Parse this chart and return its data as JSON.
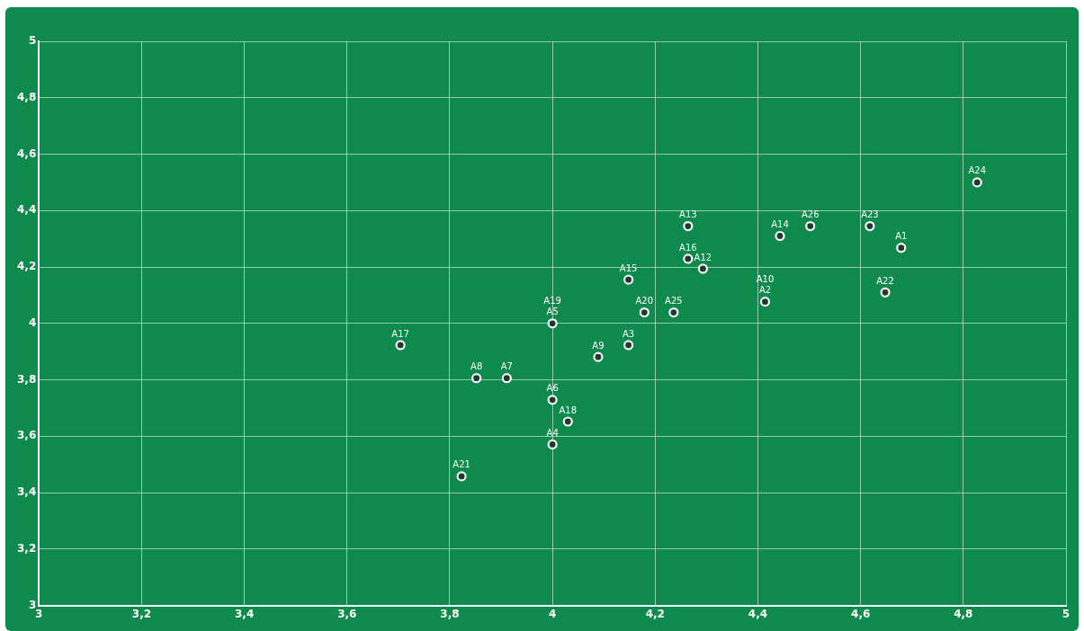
{
  "chart_data": {
    "type": "scatter",
    "marker": "circle",
    "grid": true,
    "series": [
      {
        "color": "#ffffff",
        "x": [
          4.679,
          4.414,
          4.148,
          4.0,
          4.0,
          4.0,
          3.911,
          3.852,
          4.089,
          4.293,
          4.264,
          4.443,
          4.148,
          4.264,
          3.704,
          4.03,
          4.179,
          3.823,
          4.648,
          4.618,
          4.827,
          4.236,
          4.502
        ],
        "values": [
          4.268,
          4.077,
          3.923,
          3.571,
          4.0,
          3.729,
          3.806,
          3.806,
          3.881,
          4.194,
          4.345,
          4.31,
          4.155,
          4.229,
          3.923,
          3.652,
          4.039,
          3.458,
          4.11,
          4.345,
          4.5,
          4.039,
          4.345
        ]
      }
    ],
    "annotations": [
      {
        "text": "A1",
        "x": 4.679,
        "y": 4.268
      },
      {
        "text": "A2",
        "x": 4.414,
        "y": 4.077
      },
      {
        "text": "A3",
        "x": 4.148,
        "y": 3.923
      },
      {
        "text": "A4",
        "x": 4.0,
        "y": 3.571
      },
      {
        "text": "A5",
        "x": 4.0,
        "y": 4.0
      },
      {
        "text": "A6",
        "x": 4.0,
        "y": 3.729
      },
      {
        "text": "A7",
        "x": 3.911,
        "y": 3.806
      },
      {
        "text": "A8",
        "x": 3.852,
        "y": 3.806
      },
      {
        "text": "A9",
        "x": 4.089,
        "y": 3.881
      },
      {
        "text": "A10",
        "x": 4.414,
        "y": 4.077
      },
      {
        "text": "A12",
        "x": 4.293,
        "y": 4.194
      },
      {
        "text": "A13",
        "x": 4.264,
        "y": 4.345
      },
      {
        "text": "A14",
        "x": 4.443,
        "y": 4.31
      },
      {
        "text": "A15",
        "x": 4.148,
        "y": 4.155
      },
      {
        "text": "A16",
        "x": 4.264,
        "y": 4.229
      },
      {
        "text": "A17",
        "x": 3.704,
        "y": 3.923
      },
      {
        "text": "A18",
        "x": 4.03,
        "y": 3.652
      },
      {
        "text": "A19",
        "x": 4.0,
        "y": 4.0
      },
      {
        "text": "A20",
        "x": 4.179,
        "y": 4.039
      },
      {
        "text": "A21",
        "x": 3.823,
        "y": 3.458
      },
      {
        "text": "A22",
        "x": 4.648,
        "y": 4.11
      },
      {
        "text": "A23",
        "x": 4.618,
        "y": 4.345
      },
      {
        "text": "A24",
        "x": 4.827,
        "y": 4.5
      },
      {
        "text": "A25",
        "x": 4.236,
        "y": 4.039
      },
      {
        "text": "A26",
        "x": 4.502,
        "y": 4.345
      }
    ],
    "xlim": [
      3,
      5
    ],
    "xticks": [
      {
        "value": 3,
        "label": "3"
      },
      {
        "value": 3.2,
        "label": "3,2"
      },
      {
        "value": 3.4,
        "label": "3,4"
      },
      {
        "value": 3.6,
        "label": "3,6"
      },
      {
        "value": 3.8,
        "label": "3,8"
      },
      {
        "value": 4,
        "label": "4"
      },
      {
        "value": 4.2,
        "label": "4,2"
      },
      {
        "value": 4.4,
        "label": "4,4"
      },
      {
        "value": 4.6,
        "label": "4,6"
      },
      {
        "value": 4.8,
        "label": "4,8"
      },
      {
        "value": 5,
        "label": "5"
      }
    ],
    "ylim": [
      3,
      5
    ],
    "yticks": [
      {
        "value": 3,
        "label": "3"
      },
      {
        "value": 3.2,
        "label": "3,2"
      },
      {
        "value": 3.4,
        "label": "3,4"
      },
      {
        "value": 3.6,
        "label": "3,6"
      },
      {
        "value": 3.8,
        "label": "3,8"
      },
      {
        "value": 4,
        "label": "4"
      },
      {
        "value": 4.2,
        "label": "4,2"
      },
      {
        "value": 4.4,
        "label": "4,4"
      },
      {
        "value": 4.6,
        "label": "4,6"
      },
      {
        "value": 4.8,
        "label": "4,8"
      },
      {
        "value": 5,
        "label": "5"
      }
    ]
  }
}
